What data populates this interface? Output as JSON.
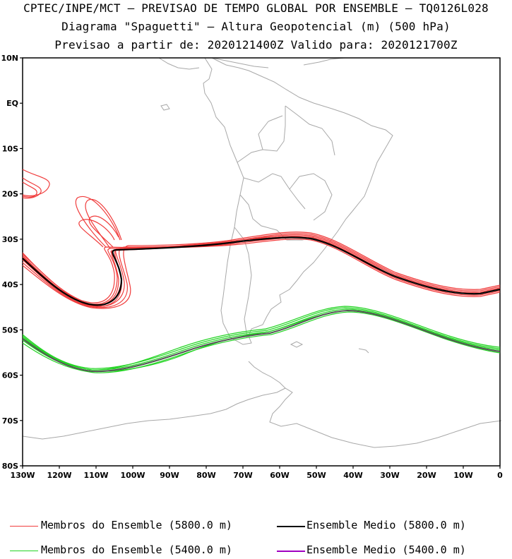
{
  "header": {
    "line1": "CPTEC/INPE/MCT — PREVISAO DE TEMPO GLOBAL POR ENSEMBLE — TQ0126L028",
    "line2": "Diagrama \"Spaguetti\" — Altura Geopotencial (m) (500 hPa)",
    "line3": "Previsao a partir de: 2020121400Z  Valido para: 2020121700Z"
  },
  "map": {
    "lat_labels": [
      "10N",
      "EQ",
      "10S",
      "20S",
      "30S",
      "40S",
      "50S",
      "60S",
      "70S",
      "80S"
    ],
    "lon_labels": [
      "130W",
      "120W",
      "110W",
      "100W",
      "90W",
      "80W",
      "70W",
      "60W",
      "50W",
      "40W",
      "30W",
      "20W",
      "10W",
      "0"
    ],
    "lat_range": [
      -80,
      10
    ],
    "lon_range": [
      -130,
      0
    ],
    "colors": {
      "member_5800": "#f03c3c",
      "mean_5800": "#000000",
      "member_5400": "#22d422",
      "mean_5400": "#a000c0",
      "coastline": "#a8a8a8"
    }
  },
  "legend": {
    "members_5800": "Membros do Ensemble (5800.0 m)",
    "mean_5800": "Ensemble Medio (5800.0 m)",
    "members_5400": "Membros do Ensemble (5400.0 m)",
    "mean_5400": "Ensemble Medio (5400.0 m)"
  }
}
